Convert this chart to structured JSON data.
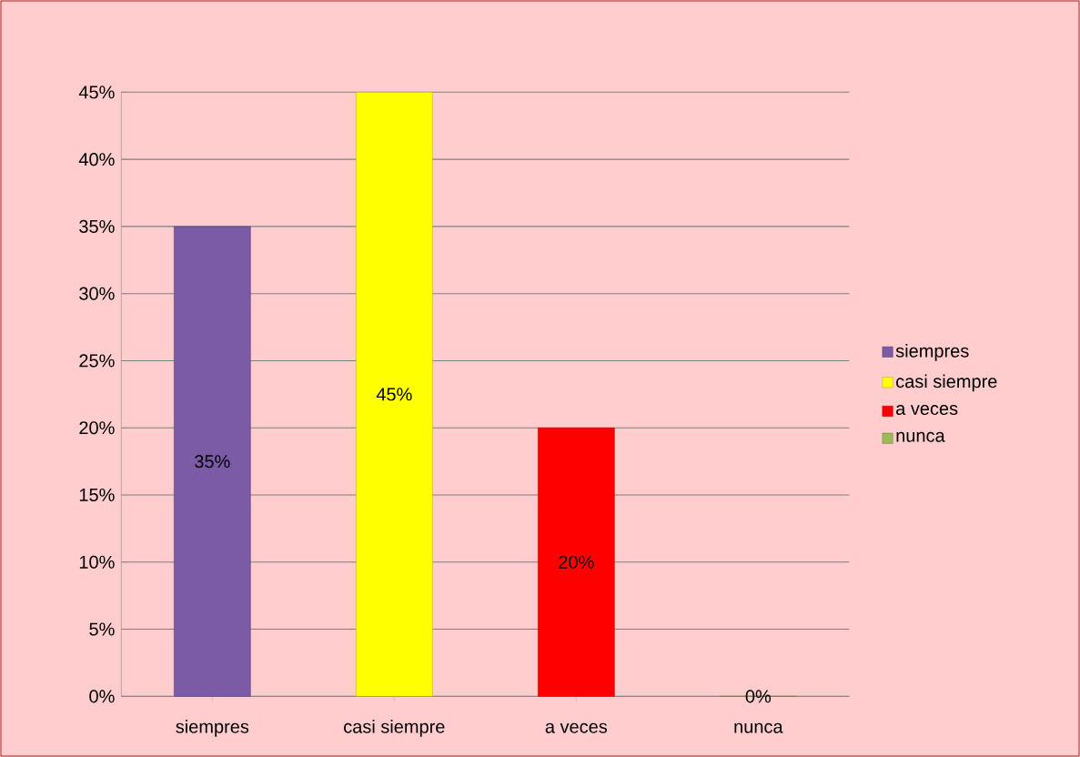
{
  "chart_data": {
    "type": "bar",
    "categories": [
      "siempres",
      "casi siempre",
      "a veces",
      "nunca"
    ],
    "series": [
      {
        "name": "siempres",
        "color": "#7b5aa6",
        "values": [
          35,
          null,
          null,
          null
        ],
        "value_labels": [
          "35%",
          null,
          null,
          null
        ]
      },
      {
        "name": "casi siempre",
        "color": "#ffff00",
        "values": [
          null,
          45,
          null,
          null
        ],
        "value_labels": [
          null,
          "45%",
          null,
          null
        ]
      },
      {
        "name": "a veces",
        "color": "#ff0000",
        "values": [
          null,
          null,
          20,
          null
        ],
        "value_labels": [
          null,
          null,
          "20%",
          null
        ]
      },
      {
        "name": "nunca",
        "color": "#9bbb59",
        "values": [
          null,
          null,
          null,
          0
        ],
        "value_labels": [
          null,
          null,
          null,
          "0%"
        ]
      }
    ],
    "ylim": [
      0,
      45
    ],
    "yticks": [
      {
        "value": 0,
        "label": "0%"
      },
      {
        "value": 5,
        "label": "5%"
      },
      {
        "value": 10,
        "label": "10%"
      },
      {
        "value": 15,
        "label": "15%"
      },
      {
        "value": 20,
        "label": "20%"
      },
      {
        "value": 25,
        "label": "25%"
      },
      {
        "value": 30,
        "label": "30%"
      },
      {
        "value": 35,
        "label": "35%"
      },
      {
        "value": 40,
        "label": "40%"
      },
      {
        "value": 45,
        "label": "45%"
      }
    ],
    "grid": "y",
    "legend": "right"
  }
}
